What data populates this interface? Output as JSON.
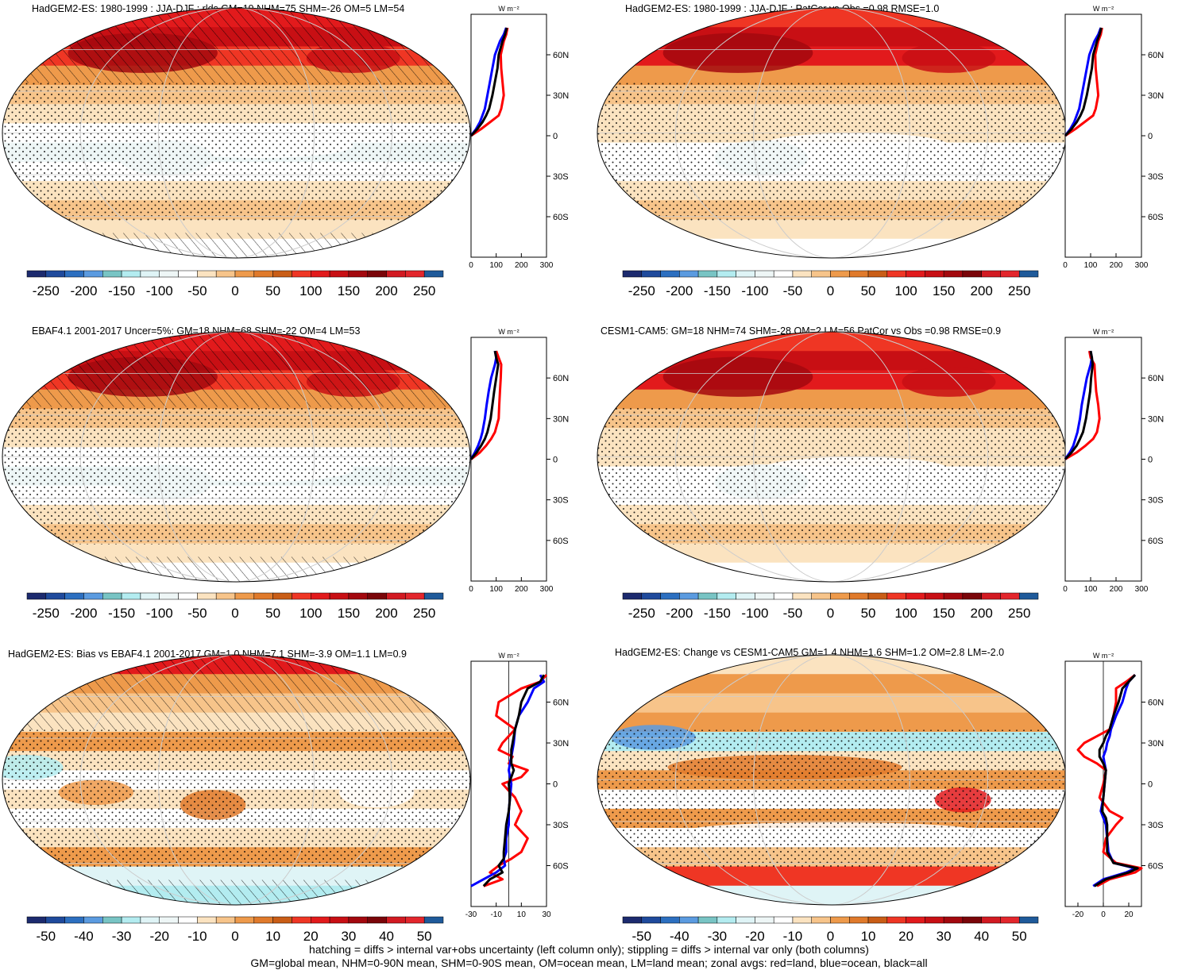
{
  "colors": {
    "palette": [
      "#1c2a6e",
      "#1f4a9c",
      "#2c6fc0",
      "#5b9be0",
      "#78c4c4",
      "#b3ecf0",
      "#dff4f6",
      "#eef6f6",
      "#ffffff",
      "#fbe3c0",
      "#f7c48a",
      "#ee9a4b",
      "#e07a2b",
      "#c95d16",
      "#ef3624",
      "#e21a1c",
      "#c80f14",
      "#a3080e",
      "#7a0509",
      "#d21a22",
      "#e3262c",
      "#1f5a9a"
    ],
    "zonal_land": "#ff0000",
    "zonal_ocean": "#0000ff",
    "zonal_all": "#000000",
    "graticule": "#cccccc"
  },
  "footer": {
    "line1": "hatching = diffs > internal var+obs uncertainty (left column only); stippling = diffs > internal var only (both columns)",
    "line2": "GM=global mean, NHM=0-90N mean, SHM=0-90S mean, OM=ocean mean, LM=land mean; zonal avgs: red=land, blue=ocean, black=all"
  },
  "chart_data": [
    {
      "type": "heatmap",
      "title": "HadGEM2-ES: 1980-1999 : JJA-DJF : rlds GM=19 NHM=75 SHM=-26 OM=5 LM=54",
      "colorbar_ticks": [
        "-250",
        "-200",
        "-150",
        "-100",
        "-50",
        "0",
        "50",
        "100",
        "150",
        "200",
        "250"
      ],
      "zonal": {
        "unit_label": "W m⁻²",
        "xlim": [
          0,
          300
        ],
        "xticks": [
          "0",
          "100",
          "200",
          "300"
        ],
        "lat_ticks": [
          "60N",
          "30N",
          "0",
          "30S",
          "60S"
        ],
        "series": [
          {
            "name": "land",
            "lat": [
              0,
              5,
              10,
              15,
              20,
              30,
              40,
              50,
              60,
              70,
              75,
              80
            ],
            "values": [
              0,
              40,
              75,
              110,
              120,
              130,
              125,
              120,
              118,
              130,
              140,
              145
            ]
          },
          {
            "name": "ocean",
            "lat": [
              0,
              5,
              10,
              15,
              20,
              30,
              40,
              50,
              60,
              70,
              75,
              80
            ],
            "values": [
              0,
              20,
              35,
              45,
              55,
              65,
              75,
              85,
              95,
              115,
              130,
              140
            ]
          },
          {
            "name": "all",
            "lat": [
              0,
              5,
              10,
              15,
              20,
              30,
              40,
              50,
              60,
              70,
              75,
              80
            ],
            "values": [
              0,
              25,
              45,
              60,
              72,
              85,
              95,
              105,
              110,
              125,
              135,
              142
            ]
          }
        ]
      },
      "hatched": true
    },
    {
      "type": "heatmap",
      "title": "HadGEM2-ES: 1980-1999 : JJA-DJF : PatCor vs Obs =0.98 RMSE=1.0",
      "colorbar_ticks": [
        "-250",
        "-200",
        "-150",
        "-100",
        "-50",
        "0",
        "50",
        "100",
        "150",
        "200",
        "250"
      ],
      "zonal": {
        "unit_label": "W m⁻²",
        "xlim": [
          0,
          300
        ],
        "xticks": [
          "0",
          "100",
          "200",
          "300"
        ],
        "lat_ticks": [
          "60N",
          "30N",
          "0",
          "30S",
          "60S"
        ],
        "series": [
          {
            "name": "land",
            "lat": [
              0,
              5,
              10,
              15,
              20,
              30,
              40,
              50,
              60,
              70,
              75,
              80
            ],
            "values": [
              0,
              40,
              75,
              110,
              120,
              130,
              125,
              120,
              118,
              130,
              140,
              145
            ]
          },
          {
            "name": "ocean",
            "lat": [
              0,
              5,
              10,
              15,
              20,
              30,
              40,
              50,
              60,
              70,
              75,
              80
            ],
            "values": [
              0,
              20,
              35,
              45,
              55,
              65,
              75,
              85,
              95,
              115,
              130,
              140
            ]
          },
          {
            "name": "all",
            "lat": [
              0,
              5,
              10,
              15,
              20,
              30,
              40,
              50,
              60,
              70,
              75,
              80
            ],
            "values": [
              0,
              25,
              45,
              60,
              72,
              85,
              95,
              105,
              110,
              125,
              135,
              142
            ]
          }
        ]
      },
      "hatched": false
    },
    {
      "type": "heatmap",
      "title": "EBAF4.1 2001-2017 Uncer=5%: GM=18 NHM=68 SHM=-22 OM=4 LM=53",
      "colorbar_ticks": [
        "-250",
        "-200",
        "-150",
        "-100",
        "-50",
        "0",
        "50",
        "100",
        "150",
        "200",
        "250"
      ],
      "zonal": {
        "unit_label": "W m⁻²",
        "xlim": [
          0,
          300
        ],
        "xticks": [
          "0",
          "100",
          "200",
          "300"
        ],
        "lat_ticks": [
          "60N",
          "30N",
          "0",
          "30S",
          "60S"
        ],
        "series": [
          {
            "name": "land",
            "lat": [
              0,
              5,
              10,
              15,
              20,
              30,
              40,
              50,
              60,
              70,
              75,
              80
            ],
            "values": [
              0,
              35,
              60,
              80,
              95,
              110,
              112,
              115,
              118,
              120,
              110,
              100
            ]
          },
          {
            "name": "ocean",
            "lat": [
              0,
              5,
              10,
              15,
              20,
              30,
              40,
              50,
              60,
              70,
              75,
              80
            ],
            "values": [
              0,
              15,
              28,
              38,
              45,
              55,
              62,
              70,
              80,
              95,
              100,
              95
            ]
          },
          {
            "name": "all",
            "lat": [
              0,
              5,
              10,
              15,
              20,
              30,
              40,
              50,
              60,
              70,
              75,
              80
            ],
            "values": [
              0,
              22,
              40,
              55,
              65,
              78,
              85,
              92,
              100,
              108,
              100,
              95
            ]
          }
        ]
      },
      "hatched": true
    },
    {
      "type": "heatmap",
      "title": "CESM1-CAM5: GM=18 NHM=74 SHM=-28 OM=2 LM=56 PatCor vs Obs =0.98 RMSE=0.9",
      "colorbar_ticks": [
        "-250",
        "-200",
        "-150",
        "-100",
        "-50",
        "0",
        "50",
        "100",
        "150",
        "200",
        "250"
      ],
      "zonal": {
        "unit_label": "W m⁻²",
        "xlim": [
          0,
          300
        ],
        "xticks": [
          "0",
          "100",
          "200",
          "300"
        ],
        "lat_ticks": [
          "60N",
          "30N",
          "0",
          "30S",
          "60S"
        ],
        "series": [
          {
            "name": "land",
            "lat": [
              0,
              5,
              10,
              15,
              20,
              30,
              40,
              50,
              60,
              70,
              75,
              80
            ],
            "values": [
              0,
              45,
              80,
              110,
              125,
              135,
              130,
              122,
              118,
              115,
              100,
              95
            ]
          },
          {
            "name": "ocean",
            "lat": [
              0,
              5,
              10,
              15,
              20,
              30,
              40,
              50,
              60,
              70,
              75,
              80
            ],
            "values": [
              0,
              18,
              32,
              40,
              48,
              58,
              65,
              75,
              85,
              100,
              105,
              100
            ]
          },
          {
            "name": "all",
            "lat": [
              0,
              5,
              10,
              15,
              20,
              30,
              40,
              50,
              60,
              70,
              75,
              80
            ],
            "values": [
              0,
              25,
              45,
              58,
              70,
              82,
              90,
              98,
              102,
              108,
              105,
              100
            ]
          }
        ]
      },
      "hatched": false
    },
    {
      "type": "heatmap",
      "title": "HadGEM2-ES: Bias vs EBAF4.1 2001-2017 GM=1.0 NHM=7.1 SHM=-3.9 OM=1.1 LM=0.9",
      "colorbar_ticks": [
        "-50",
        "-40",
        "-30",
        "-20",
        "-10",
        "0",
        "10",
        "20",
        "30",
        "40",
        "50"
      ],
      "zonal": {
        "unit_label": "W m⁻²",
        "xlim": [
          -30,
          30
        ],
        "xticks": [
          "-30",
          "-10",
          "10",
          "30"
        ],
        "lat_ticks": [
          "60N",
          "30N",
          "0",
          "30S",
          "60S"
        ],
        "series": [
          {
            "name": "land",
            "lat": [
              -75,
              -70,
              -65,
              -60,
              -55,
              -50,
              -40,
              -30,
              -20,
              -10,
              0,
              5,
              10,
              15,
              20,
              25,
              30,
              40,
              50,
              60,
              70,
              75,
              80
            ],
            "values": [
              -20,
              -5,
              -15,
              -8,
              2,
              10,
              15,
              5,
              10,
              5,
              -5,
              10,
              15,
              0,
              3,
              -8,
              -5,
              5,
              -10,
              -8,
              10,
              25,
              30
            ]
          },
          {
            "name": "ocean",
            "lat": [
              -75,
              -70,
              -65,
              -60,
              -55,
              -50,
              -40,
              -30,
              -20,
              -10,
              0,
              5,
              10,
              15,
              20,
              25,
              30,
              40,
              50,
              60,
              70,
              75,
              80
            ],
            "values": [
              -30,
              -20,
              -10,
              -3,
              -4,
              -2,
              -2,
              0,
              0,
              1,
              2,
              1,
              0,
              1,
              2,
              3,
              4,
              5,
              8,
              15,
              20,
              28,
              25
            ]
          },
          {
            "name": "all",
            "lat": [
              -75,
              -70,
              -65,
              -60,
              -55,
              -50,
              -40,
              -30,
              -20,
              -10,
              0,
              5,
              10,
              15,
              20,
              25,
              30,
              40,
              50,
              60,
              70,
              75,
              80
            ],
            "values": [
              -20,
              -15,
              -5,
              -8,
              -4,
              -4,
              -3,
              -2,
              0,
              1,
              0,
              2,
              4,
              2,
              2,
              2,
              3,
              5,
              8,
              10,
              15,
              25,
              28
            ]
          }
        ]
      },
      "hatched": true
    },
    {
      "type": "heatmap",
      "title": "HadGEM2-ES: Change vs CESM1-CAM5 GM=1.4 NHM=1.6 SHM=1.2 OM=2.8 LM=-2.0",
      "colorbar_ticks": [
        "-50",
        "-40",
        "-30",
        "-20",
        "-10",
        "0",
        "10",
        "20",
        "30",
        "40",
        "50"
      ],
      "zonal": {
        "unit_label": "W m⁻²",
        "xlim": [
          -30,
          30
        ],
        "xticks": [
          "-20",
          "0",
          "20"
        ],
        "lat_ticks": [
          "60N",
          "30N",
          "0",
          "30S",
          "60S"
        ],
        "series": [
          {
            "name": "land",
            "lat": [
              -75,
              -70,
              -65,
              -62,
              -58,
              -50,
              -40,
              -30,
              -25,
              -20,
              -10,
              0,
              10,
              15,
              20,
              25,
              30,
              35,
              40,
              50,
              60,
              70,
              75,
              80
            ],
            "values": [
              -5,
              5,
              25,
              30,
              10,
              0,
              2,
              10,
              15,
              5,
              -3,
              0,
              2,
              -5,
              -15,
              -20,
              -15,
              -5,
              5,
              8,
              10,
              10,
              18,
              25
            ]
          },
          {
            "name": "ocean",
            "lat": [
              -75,
              -70,
              -65,
              -62,
              -58,
              -50,
              -40,
              -30,
              -25,
              -20,
              -10,
              0,
              10,
              15,
              20,
              25,
              30,
              35,
              40,
              50,
              60,
              70,
              75,
              80
            ],
            "values": [
              -8,
              0,
              18,
              25,
              8,
              4,
              3,
              2,
              0,
              -2,
              0,
              1,
              2,
              1,
              0,
              2,
              3,
              5,
              6,
              10,
              15,
              18,
              20,
              25
            ]
          },
          {
            "name": "all",
            "lat": [
              -75,
              -70,
              -65,
              -62,
              -58,
              -50,
              -40,
              -30,
              -25,
              -20,
              -10,
              0,
              10,
              15,
              20,
              25,
              30,
              35,
              40,
              50,
              60,
              70,
              75,
              80
            ],
            "values": [
              -7,
              2,
              20,
              27,
              8,
              3,
              3,
              3,
              2,
              -1,
              0,
              1,
              2,
              0,
              -3,
              -3,
              0,
              2,
              5,
              8,
              12,
              15,
              20,
              25
            ]
          }
        ]
      },
      "hatched": false
    }
  ]
}
